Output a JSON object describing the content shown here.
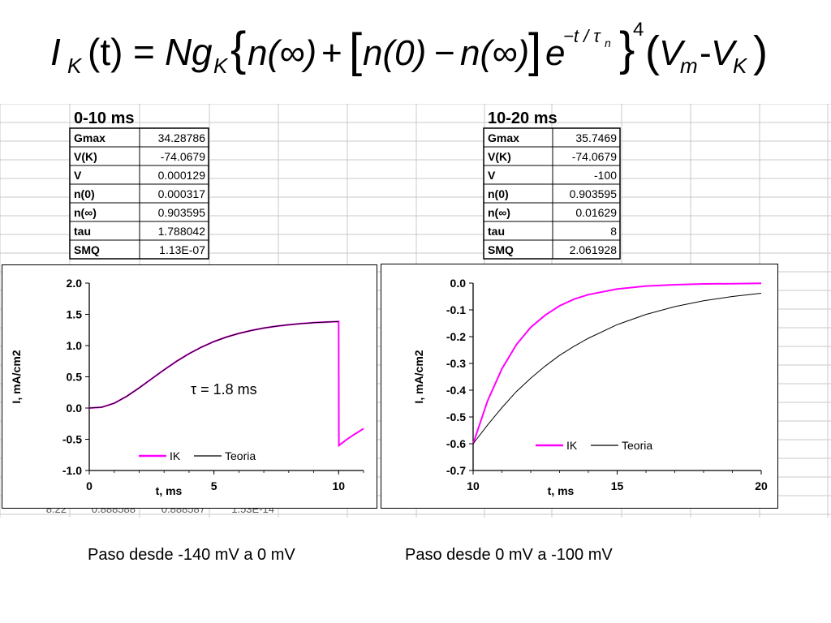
{
  "formula": {
    "lhs_I": "I",
    "lhs_sub": "K",
    "lhs_arg": "(t)",
    "eq": "=",
    "N": "N",
    "g": "g",
    "g_sub": "K",
    "open_brace": "{",
    "n_inf": "n(∞)",
    "plus": "+",
    "open_br": "[",
    "n0": "n(0)",
    "minus": "−",
    "n_inf2": "n(∞)",
    "close_br": "]",
    "e": "e",
    "exp": "−t / τ",
    "exp_sub": "n",
    "close_brace": "}",
    "power": "4",
    "open_paren": "(",
    "V": "V",
    "Vm_sub": "m",
    "dash": "-",
    "V2": "V",
    "VK_sub": "K",
    "close_paren": ")"
  },
  "tables": [
    {
      "title": "0-10 ms",
      "rows": [
        {
          "label": "Gmax",
          "value": "34.28786"
        },
        {
          "label": "V(K)",
          "value": "-74.0679"
        },
        {
          "label": "V",
          "value": "0.000129"
        },
        {
          "label": "n(0)",
          "value": "0.000317"
        },
        {
          "label": "n(∞)",
          "value": "0.903595"
        },
        {
          "label": "tau",
          "value": "1.788042"
        },
        {
          "label": "SMQ",
          "value": "1.13E-07"
        }
      ]
    },
    {
      "title": "10-20 ms",
      "rows": [
        {
          "label": "Gmax",
          "value": "35.7469"
        },
        {
          "label": "V(K)",
          "value": "-74.0679"
        },
        {
          "label": "V",
          "value": "-100"
        },
        {
          "label": "n(0)",
          "value": "0.903595"
        },
        {
          "label": "n(∞)",
          "value": "0.01629"
        },
        {
          "label": "tau",
          "value": "8"
        },
        {
          "label": "SMQ",
          "value": "2.061928"
        }
      ]
    }
  ],
  "sheet_bottom_row": [
    "8.22",
    "0.888588",
    "0.888587",
    "1.53E-14"
  ],
  "chart_data": [
    {
      "type": "line",
      "title": "",
      "xlabel": "t, ms",
      "ylabel": "I, mA/cm2",
      "xlim": [
        0,
        11
      ],
      "ylim": [
        -1.0,
        2.0
      ],
      "xticks": [
        0,
        5,
        10
      ],
      "yticks": [
        "2.0",
        "1.5",
        "1.0",
        "0.5",
        "0.0",
        "-0.5",
        "-1.0"
      ],
      "annotation": "τ = 1.8 ms",
      "grid": false,
      "legend_position": "bottom-right",
      "series": [
        {
          "name": "IK",
          "color": "#ff00ff",
          "x": [
            0,
            0.5,
            1,
            1.5,
            2,
            2.5,
            3,
            3.5,
            4,
            4.5,
            5,
            5.5,
            6,
            6.5,
            7,
            7.5,
            8,
            8.5,
            9,
            9.5,
            10,
            10.01,
            10.3,
            10.6,
            11
          ],
          "y": [
            0.0,
            0.013,
            0.077,
            0.187,
            0.322,
            0.467,
            0.612,
            0.748,
            0.87,
            0.975,
            1.063,
            1.136,
            1.195,
            1.242,
            1.28,
            1.31,
            1.333,
            1.352,
            1.366,
            1.377,
            1.385,
            -0.6,
            -0.51,
            -0.43,
            -0.33
          ]
        },
        {
          "name": "Teoria",
          "color": "#000000",
          "x": [
            0,
            0.5,
            1,
            1.5,
            2,
            2.5,
            3,
            3.5,
            4,
            4.5,
            5,
            5.5,
            6,
            6.5,
            7,
            7.5,
            8,
            8.5,
            9,
            9.5,
            10
          ],
          "y": [
            0.0,
            0.013,
            0.077,
            0.187,
            0.322,
            0.467,
            0.612,
            0.748,
            0.87,
            0.975,
            1.063,
            1.136,
            1.195,
            1.242,
            1.28,
            1.31,
            1.333,
            1.352,
            1.366,
            1.377,
            1.385
          ]
        }
      ]
    },
    {
      "type": "line",
      "title": "",
      "xlabel": "t, ms",
      "ylabel": "I, mA/cm2",
      "xlim": [
        10,
        20
      ],
      "ylim": [
        -0.7,
        0.0
      ],
      "xticks": [
        10,
        15,
        20
      ],
      "yticks": [
        "0.0",
        "-0.1",
        "-0.2",
        "-0.3",
        "-0.4",
        "-0.5",
        "-0.6",
        "-0.7"
      ],
      "grid": false,
      "legend_position": "bottom-right",
      "series": [
        {
          "name": "IK",
          "color": "#ff00ff",
          "x": [
            10,
            10.5,
            11,
            11.5,
            12,
            12.5,
            13,
            13.5,
            14,
            15,
            16,
            17,
            18,
            19,
            20
          ],
          "y": [
            -0.6,
            -0.44,
            -0.32,
            -0.23,
            -0.165,
            -0.12,
            -0.085,
            -0.06,
            -0.043,
            -0.022,
            -0.011,
            -0.006,
            -0.003,
            -0.002,
            -0.001
          ]
        },
        {
          "name": "Teoria",
          "color": "#000000",
          "x": [
            10,
            10.5,
            11,
            11.5,
            12,
            12.5,
            13,
            13.5,
            14,
            15,
            16,
            17,
            18,
            19,
            20
          ],
          "y": [
            -0.6,
            -0.53,
            -0.465,
            -0.405,
            -0.355,
            -0.31,
            -0.27,
            -0.236,
            -0.206,
            -0.155,
            -0.117,
            -0.088,
            -0.066,
            -0.05,
            -0.038
          ]
        }
      ]
    }
  ],
  "captions": [
    "Paso desde -140 mV a 0 mV",
    "Paso desde 0 mV a -100 mV"
  ]
}
